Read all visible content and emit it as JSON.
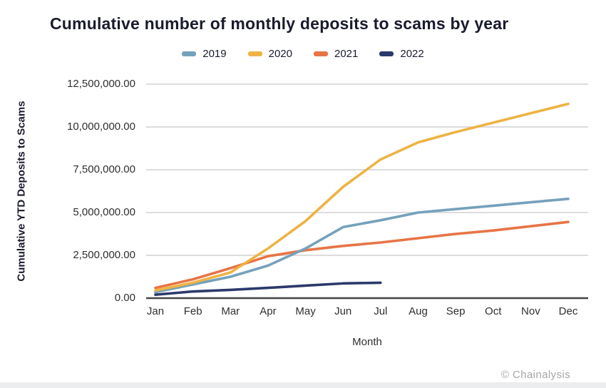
{
  "page": {
    "footer_credit": "© Chainalysis"
  },
  "chart_data": {
    "type": "line",
    "title": "Cumulative number of monthly deposits to scams by year",
    "xlabel": "Month",
    "ylabel": "Cumulative YTD Deposits to Scams",
    "x_categories": [
      "Jan",
      "Feb",
      "Mar",
      "Apr",
      "May",
      "Jun",
      "Jul",
      "Aug",
      "Sep",
      "Oct",
      "Nov",
      "Dec"
    ],
    "ylim": [
      0,
      12500000
    ],
    "grid": true,
    "legend_position": "top",
    "y_ticks": [
      {
        "value": 0,
        "label": "0.00"
      },
      {
        "value": 2500000,
        "label": "2,500,000.00"
      },
      {
        "value": 5000000,
        "label": "5,000,000.00"
      },
      {
        "value": 7500000,
        "label": "7,500,000.00"
      },
      {
        "value": 10000000,
        "label": "10,000,000.00"
      },
      {
        "value": 12500000,
        "label": "12,500,000.00"
      }
    ],
    "series": [
      {
        "name": "2019",
        "color": "#75A1BB",
        "values": [
          350000,
          800000,
          1250000,
          1900000,
          2900000,
          4150000,
          4550000,
          5000000,
          5200000,
          5400000,
          5600000,
          5800000
        ]
      },
      {
        "name": "2020",
        "color": "#EDB343",
        "values": [
          450000,
          900000,
          1500000,
          2900000,
          4500000,
          6500000,
          8100000,
          9100000,
          9700000,
          10250000,
          10800000,
          11350000
        ]
      },
      {
        "name": "2021",
        "color": "#E77446",
        "values": [
          600000,
          1100000,
          1750000,
          2450000,
          2800000,
          3050000,
          3250000,
          3500000,
          3750000,
          3950000,
          4200000,
          4450000
        ]
      },
      {
        "name": "2022",
        "color": "#2B3A6B",
        "values": [
          200000,
          390000,
          480000,
          600000,
          730000,
          860000,
          900000
        ]
      }
    ]
  }
}
